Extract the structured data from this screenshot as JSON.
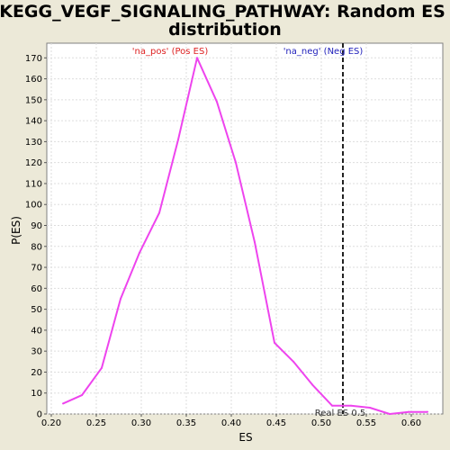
{
  "chart_data": {
    "type": "line",
    "title_line1": "KEGG_VEGF_SIGNALING_PATHWAY: Random ES",
    "title_line2": "distribution",
    "xlabel": "ES",
    "ylabel": "P(ES)",
    "xlim": [
      0.195,
      0.635
    ],
    "ylim": [
      0,
      177
    ],
    "grid": true,
    "x_ticks": [
      0.2,
      0.25,
      0.3,
      0.35,
      0.4,
      0.45,
      0.5,
      0.55,
      0.6
    ],
    "x_tick_labels": [
      "0.20",
      "0.25",
      "0.30",
      "0.35",
      "0.40",
      "0.45",
      "0.50",
      "0.55",
      "0.60"
    ],
    "y_ticks": [
      0,
      10,
      20,
      30,
      40,
      50,
      60,
      70,
      80,
      90,
      100,
      110,
      120,
      130,
      140,
      150,
      160,
      170
    ],
    "y_tick_labels": [
      "0",
      "10",
      "20",
      "30",
      "40",
      "50",
      "60",
      "70",
      "80",
      "90",
      "100",
      "110",
      "120",
      "130",
      "140",
      "150",
      "160",
      "170"
    ],
    "series": [
      {
        "color": "#ee44ee",
        "x": [
          0.213,
          0.234,
          0.256,
          0.277,
          0.298,
          0.32,
          0.341,
          0.362,
          0.384,
          0.405,
          0.426,
          0.448,
          0.469,
          0.49,
          0.512,
          0.533,
          0.554,
          0.576,
          0.597,
          0.618
        ],
        "y": [
          5,
          9,
          22,
          55,
          77,
          96,
          131,
          170,
          149,
          120,
          82,
          34,
          25,
          14,
          4,
          4,
          3,
          0,
          1,
          1
        ]
      }
    ],
    "real_es": 0.524,
    "real_es_label": "Real ES 0.5",
    "pos_label": "'na_pos' (Pos ES)",
    "neg_label": "'na_neg' (Neg ES)",
    "pos_color": "#dd2222",
    "neg_color": "#2222bb"
  }
}
